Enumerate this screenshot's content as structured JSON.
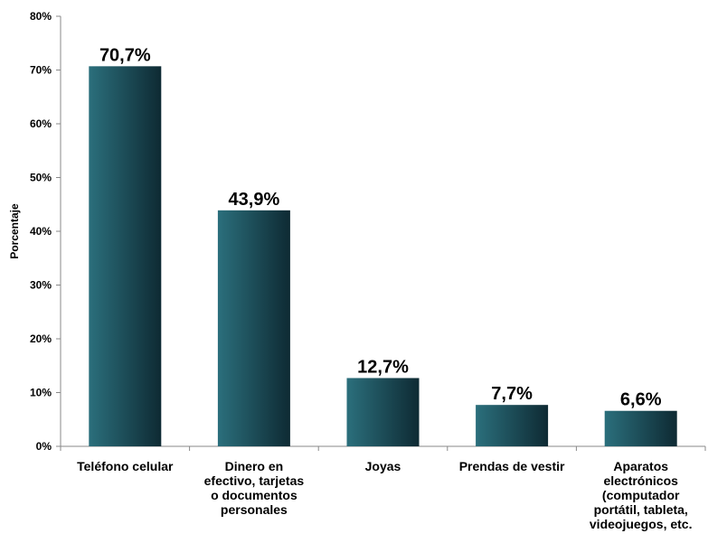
{
  "chart_data": {
    "type": "bar",
    "categories": [
      "Teléfono celular",
      "Dinero en efectivo, tarjetas o documentos personales",
      "Joyas",
      "Prendas de vestir",
      "Aparatos electrónicos (computador portátil, tableta, videojuegos, etc."
    ],
    "category_lines": [
      [
        "Teléfono celular"
      ],
      [
        "Dinero en",
        "efectivo, tarjetas",
        "o documentos",
        "personales"
      ],
      [
        "Joyas"
      ],
      [
        "Prendas de vestir"
      ],
      [
        "Aparatos",
        "electrónicos",
        "(computador",
        "portátil, tableta,",
        "videojuegos, etc."
      ]
    ],
    "values": [
      70.7,
      43.9,
      12.7,
      7.7,
      6.6
    ],
    "data_labels": [
      "70,7%",
      "43,9%",
      "12,7%",
      "7,7%",
      "6,6%"
    ],
    "ylabel": "Porcentaje",
    "xlabel": "",
    "ylim": [
      0,
      80
    ],
    "yticks": [
      0,
      10,
      20,
      30,
      40,
      50,
      60,
      70,
      80
    ],
    "ytick_labels": [
      "0%",
      "10%",
      "20%",
      "30%",
      "40%",
      "50%",
      "60%",
      "70%",
      "80%"
    ],
    "grid": false,
    "legend": "none",
    "bar_color_light": "#2b6f7c",
    "bar_color_dark": "#0e2a33"
  }
}
